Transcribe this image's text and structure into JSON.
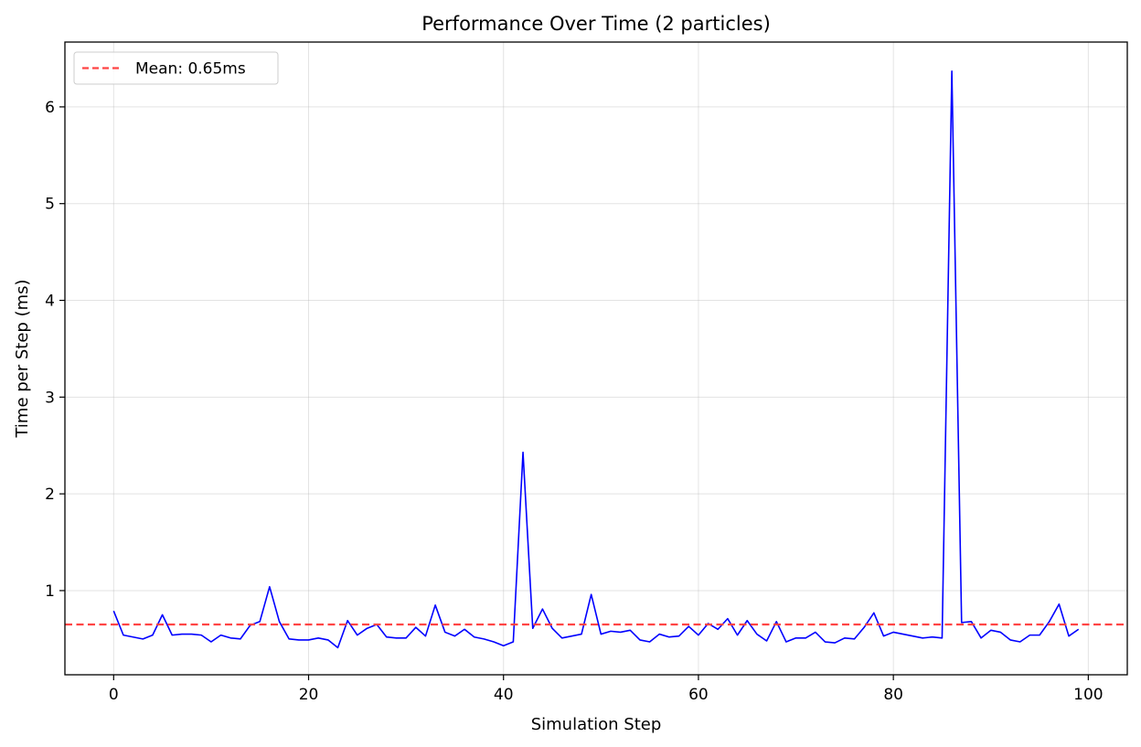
{
  "chart_data": {
    "type": "line",
    "title": "Performance Over Time (2 particles)",
    "xlabel": "Simulation Step",
    "ylabel": "Time per Step (ms)",
    "xlim": [
      -5,
      104
    ],
    "ylim": [
      0.13,
      6.67
    ],
    "xticks": [
      0,
      20,
      40,
      60,
      80,
      100
    ],
    "yticks": [
      1,
      2,
      3,
      4,
      5,
      6
    ],
    "grid": true,
    "legend_position": "top-left",
    "series": [
      {
        "color": "#0000ff",
        "x": [
          0,
          1,
          2,
          3,
          4,
          5,
          6,
          7,
          8,
          9,
          10,
          11,
          12,
          13,
          14,
          15,
          16,
          17,
          18,
          19,
          20,
          21,
          22,
          23,
          24,
          25,
          26,
          27,
          28,
          29,
          30,
          31,
          32,
          33,
          34,
          35,
          36,
          37,
          38,
          39,
          40,
          41,
          42,
          43,
          44,
          45,
          46,
          47,
          48,
          49,
          50,
          51,
          52,
          53,
          54,
          55,
          56,
          57,
          58,
          59,
          60,
          61,
          62,
          63,
          64,
          65,
          66,
          67,
          68,
          69,
          70,
          71,
          72,
          73,
          74,
          75,
          76,
          77,
          78,
          79,
          80,
          81,
          82,
          83,
          84,
          85,
          86,
          87,
          88,
          89,
          90,
          91,
          92,
          93,
          94,
          95,
          96,
          97,
          98,
          99
        ],
        "values": [
          0.79,
          0.54,
          0.52,
          0.5,
          0.54,
          0.75,
          0.54,
          0.55,
          0.55,
          0.54,
          0.47,
          0.54,
          0.51,
          0.5,
          0.64,
          0.68,
          1.04,
          0.68,
          0.5,
          0.49,
          0.49,
          0.51,
          0.49,
          0.41,
          0.69,
          0.54,
          0.61,
          0.65,
          0.52,
          0.51,
          0.51,
          0.62,
          0.53,
          0.85,
          0.57,
          0.53,
          0.6,
          0.52,
          0.5,
          0.47,
          0.43,
          0.47,
          2.43,
          0.61,
          0.81,
          0.61,
          0.51,
          0.53,
          0.55,
          0.96,
          0.55,
          0.58,
          0.57,
          0.59,
          0.49,
          0.47,
          0.55,
          0.52,
          0.53,
          0.63,
          0.54,
          0.66,
          0.6,
          0.71,
          0.54,
          0.69,
          0.55,
          0.48,
          0.68,
          0.47,
          0.51,
          0.51,
          0.57,
          0.47,
          0.46,
          0.51,
          0.5,
          0.62,
          0.77,
          0.53,
          0.57,
          0.55,
          0.53,
          0.51,
          0.52,
          0.51,
          6.37,
          0.67,
          0.68,
          0.51,
          0.59,
          0.57,
          0.49,
          0.47,
          0.54,
          0.54,
          0.68,
          0.86,
          0.53,
          0.6
        ]
      }
    ],
    "mean_line": {
      "value": 0.65,
      "label": "Mean: 0.65ms",
      "color": "#ff4444"
    }
  }
}
